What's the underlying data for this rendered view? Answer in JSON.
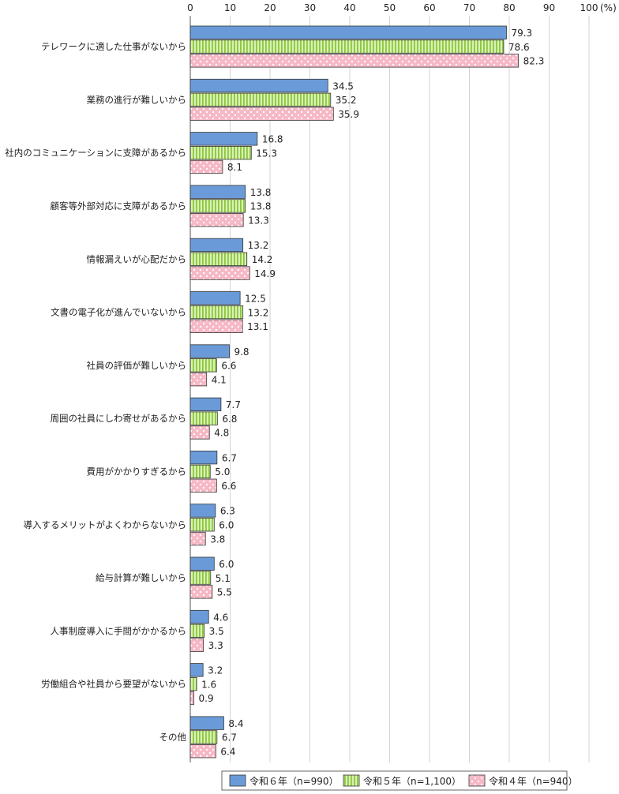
{
  "chart_data": {
    "type": "bar",
    "orientation": "horizontal",
    "xlim": [
      0,
      100
    ],
    "ticks": [
      0,
      10,
      20,
      30,
      40,
      50,
      60,
      70,
      80,
      90,
      100
    ],
    "unit_label": "(%)",
    "grid": true,
    "legend_position": "bottom-right",
    "categories": [
      "テレワークに適した仕事がないから",
      "業務の進行が難しいから",
      "社内のコミュニケーションに支障があるから",
      "顧客等外部対応に支障があるから",
      "情報漏えいが心配だから",
      "文書の電子化が進んでいないから",
      "社員の評価が難しいから",
      "周囲の社員にしわ寄せがあるから",
      "費用がかかりすぎるから",
      "導入するメリットがよくわからないから",
      "給与計算が難しいから",
      "人事制度導入に手間がかかるから",
      "労働組合や社員から要望がないから",
      "その他"
    ],
    "series": [
      {
        "name": "令和６年（n=990）",
        "color": "#6A9BD8",
        "pattern": "solid",
        "values": [
          79.3,
          34.5,
          16.8,
          13.8,
          13.2,
          12.5,
          9.8,
          7.7,
          6.7,
          6.3,
          6.0,
          4.6,
          3.2,
          8.4
        ]
      },
      {
        "name": "令和５年（n=1,100）",
        "color": "#B9E67F",
        "pattern": "vertical-stripes",
        "values": [
          78.6,
          35.2,
          15.3,
          13.8,
          14.2,
          13.2,
          6.6,
          6.8,
          5.0,
          6.0,
          5.1,
          3.5,
          1.6,
          6.7
        ]
      },
      {
        "name": "令和４年（n=940）",
        "color": "#F7B8C6",
        "pattern": "dots",
        "values": [
          82.3,
          35.9,
          8.1,
          13.3,
          14.9,
          13.1,
          4.1,
          4.8,
          6.6,
          3.8,
          5.5,
          3.3,
          0.9,
          6.4
        ]
      }
    ]
  }
}
